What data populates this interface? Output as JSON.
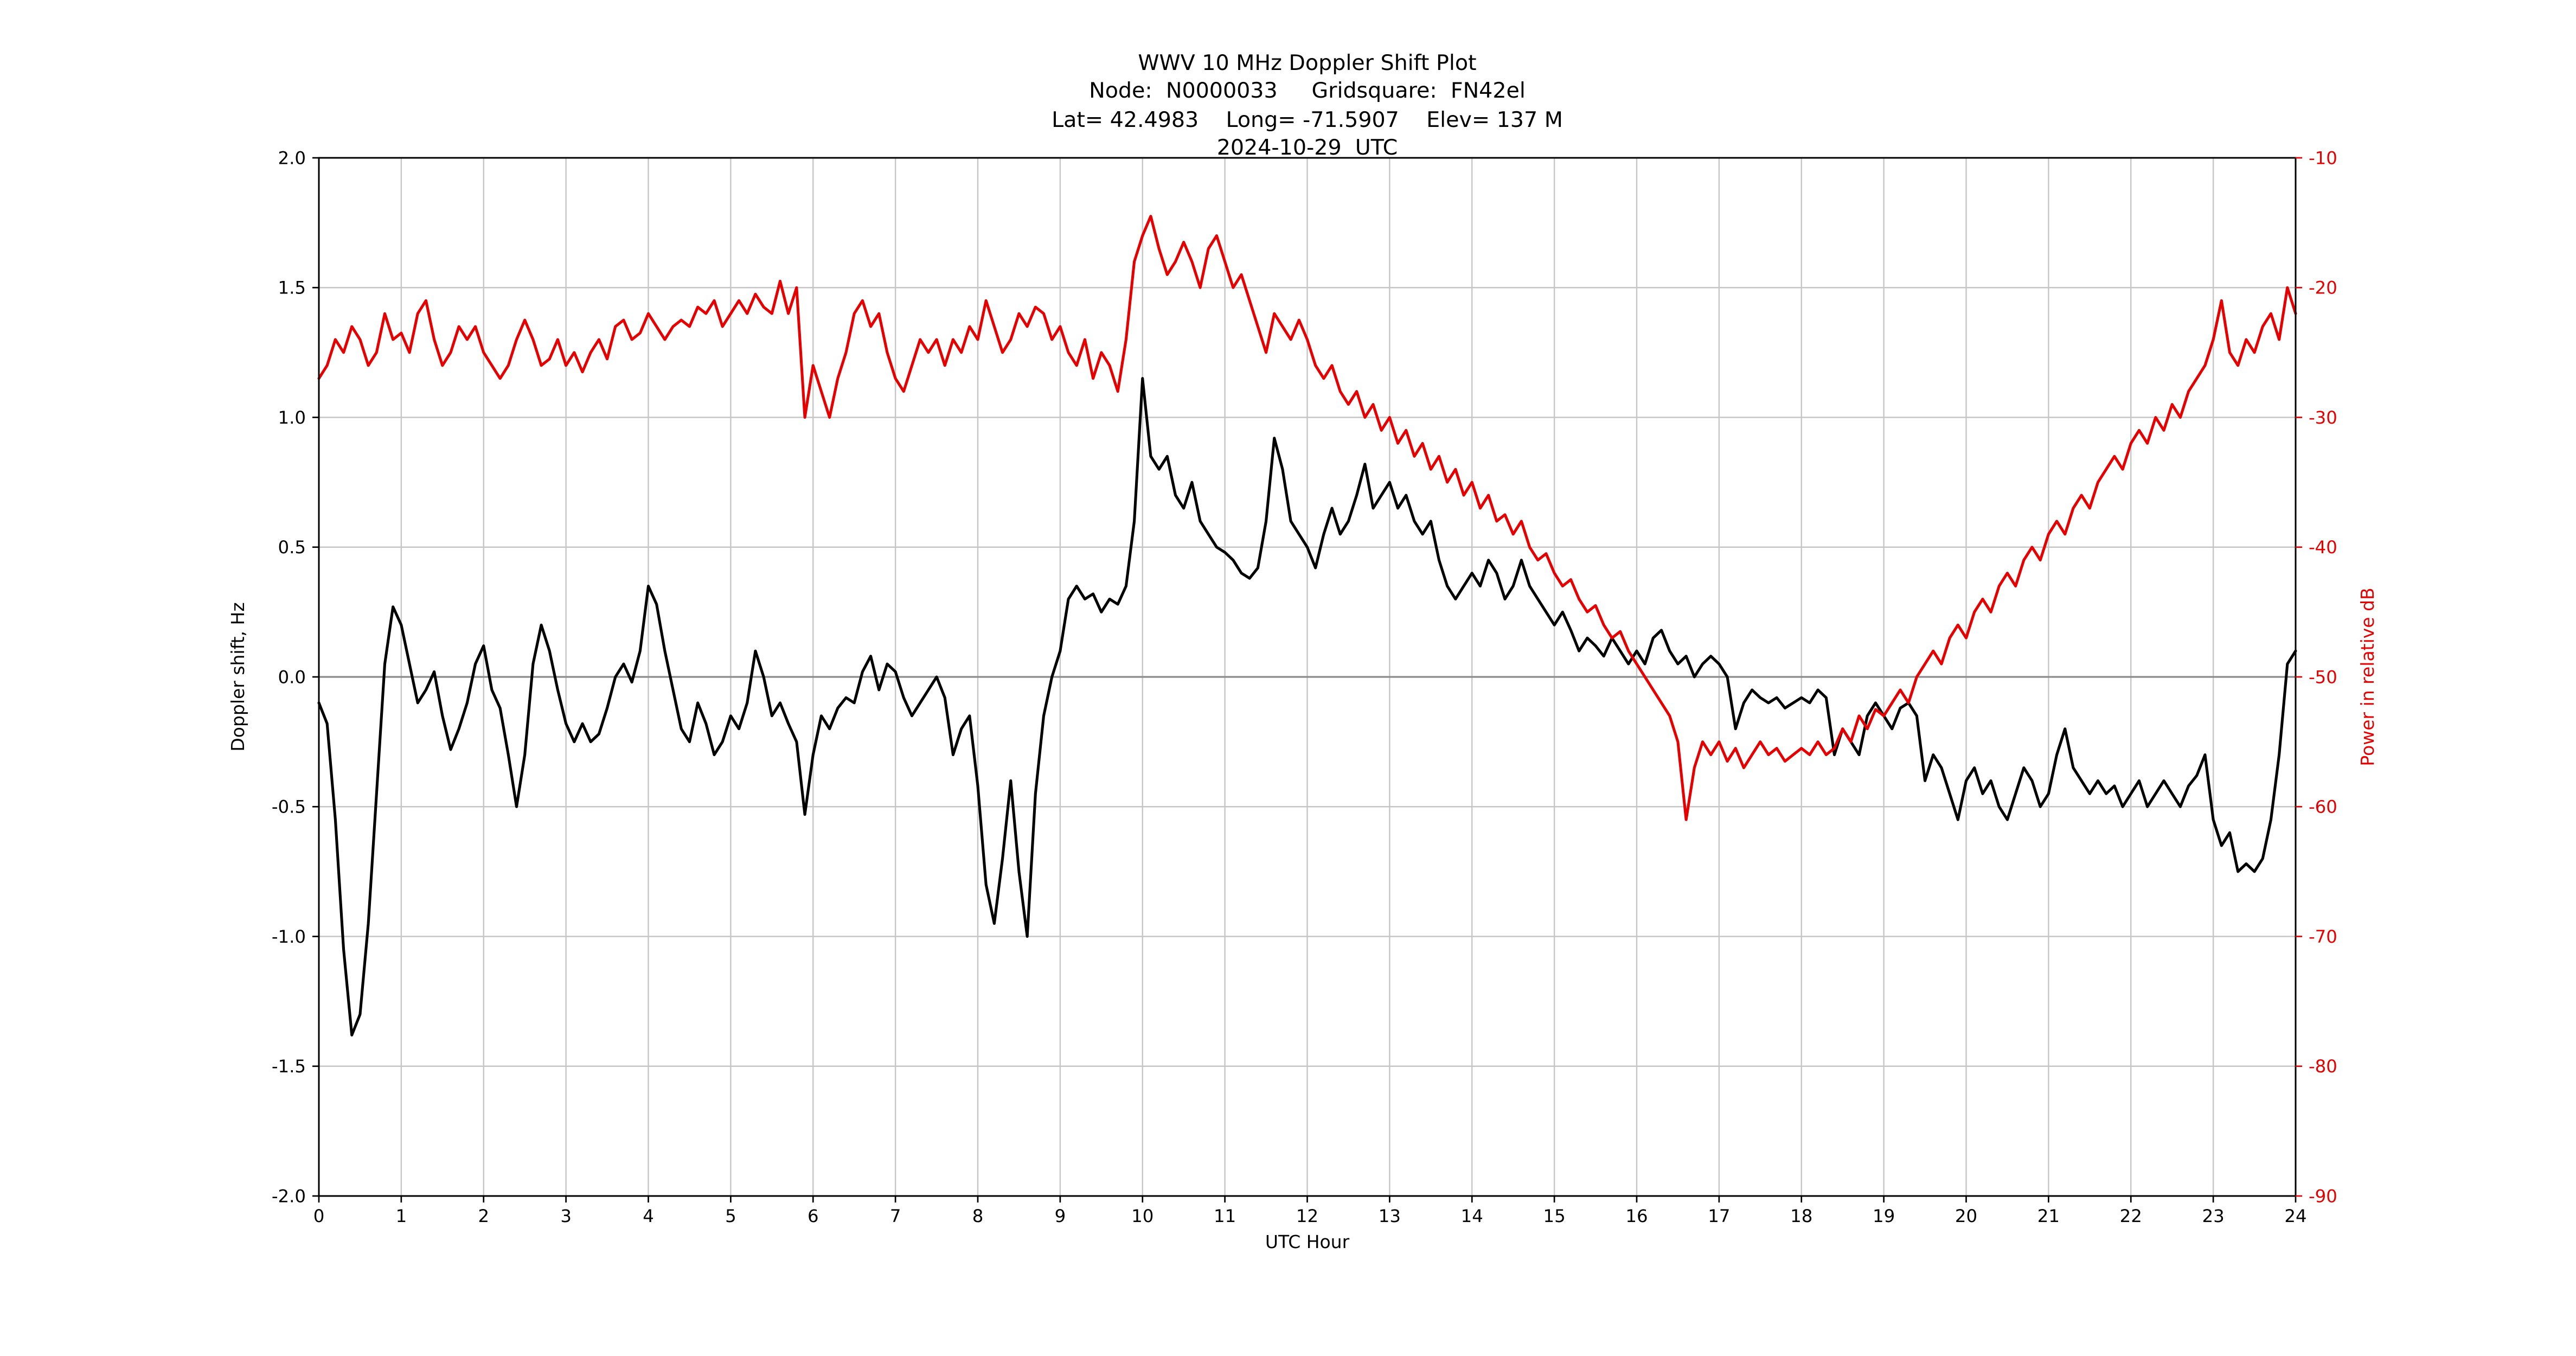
{
  "header": {
    "title": "WWV 10 MHz Doppler Shift Plot",
    "node_line": "Node:  N0000033     Gridsquare:  FN42el",
    "location_line": "Lat= 42.4983    Long= -71.5907    Elev= 137 M",
    "date_line": "2024-10-29  UTC"
  },
  "chart_data": {
    "type": "line",
    "title": "WWV 10 MHz Doppler Shift Plot",
    "xlabel": "UTC Hour",
    "ylabel_left": "Doppler shift, Hz",
    "ylabel_right": "Power in relative dB",
    "xlim": [
      0,
      24
    ],
    "ylim_left": [
      -2.0,
      2.0
    ],
    "ylim_right": [
      -90,
      -10
    ],
    "grid": true,
    "legend": "none",
    "x_start": 0,
    "x_step": 0.1,
    "xticks": {
      "values": [
        0,
        1,
        2,
        3,
        4,
        5,
        6,
        7,
        8,
        9,
        10,
        11,
        12,
        13,
        14,
        15,
        16,
        17,
        18,
        19,
        20,
        21,
        22,
        23,
        24
      ],
      "labels": [
        "0",
        "1",
        "2",
        "3",
        "4",
        "5",
        "6",
        "7",
        "8",
        "9",
        "10",
        "11",
        "12",
        "13",
        "14",
        "15",
        "16",
        "17",
        "18",
        "19",
        "20",
        "21",
        "22",
        "23",
        "24"
      ]
    },
    "yticks_left": {
      "values": [
        2.0,
        1.5,
        1.0,
        0.5,
        0.0,
        -0.5,
        -1.0,
        -1.5,
        -2.0
      ],
      "labels": [
        "2.0",
        "1.5",
        "1.0",
        "0.5",
        "0.0",
        "-0.5",
        "-1.0",
        "-1.5",
        "-2.0"
      ]
    },
    "yticks_right": {
      "values": [
        -10,
        -20,
        -30,
        -40,
        -50,
        -60,
        -70,
        -80,
        -90
      ],
      "labels": [
        "-10",
        "-20",
        "-30",
        "-40",
        "-50",
        "-60",
        "-70",
        "-80",
        "-90"
      ]
    },
    "style": {
      "grid_color": "#c6c6c6",
      "zero_line_color": "#8c8c8c",
      "spine_color": "#000000",
      "right_axis_color": "#e60000"
    },
    "series": [
      {
        "name": "Doppler shift",
        "axis": "left",
        "color": "#000000",
        "values": [
          -0.1,
          -0.18,
          -0.55,
          -1.05,
          -1.38,
          -1.3,
          -0.95,
          -0.45,
          0.05,
          0.27,
          0.2,
          0.05,
          -0.1,
          -0.05,
          0.02,
          -0.15,
          -0.28,
          -0.2,
          -0.1,
          0.05,
          0.12,
          -0.05,
          -0.12,
          -0.3,
          -0.5,
          -0.3,
          0.05,
          0.2,
          0.1,
          -0.05,
          -0.18,
          -0.25,
          -0.18,
          -0.25,
          -0.22,
          -0.12,
          0.0,
          0.05,
          -0.02,
          0.1,
          0.35,
          0.28,
          0.1,
          -0.05,
          -0.2,
          -0.25,
          -0.1,
          -0.18,
          -0.3,
          -0.25,
          -0.15,
          -0.2,
          -0.1,
          0.1,
          0.0,
          -0.15,
          -0.1,
          -0.18,
          -0.25,
          -0.53,
          -0.3,
          -0.15,
          -0.2,
          -0.12,
          -0.08,
          -0.1,
          0.02,
          0.08,
          -0.05,
          0.05,
          0.02,
          -0.08,
          -0.15,
          -0.1,
          -0.05,
          0.0,
          -0.08,
          -0.3,
          -0.2,
          -0.15,
          -0.42,
          -0.8,
          -0.95,
          -0.7,
          -0.4,
          -0.75,
          -1.0,
          -0.45,
          -0.15,
          0.0,
          0.1,
          0.3,
          0.35,
          0.3,
          0.32,
          0.25,
          0.3,
          0.28,
          0.35,
          0.6,
          1.15,
          0.85,
          0.8,
          0.85,
          0.7,
          0.65,
          0.75,
          0.6,
          0.55,
          0.5,
          0.48,
          0.45,
          0.4,
          0.38,
          0.42,
          0.6,
          0.92,
          0.8,
          0.6,
          0.55,
          0.5,
          0.42,
          0.55,
          0.65,
          0.55,
          0.6,
          0.7,
          0.82,
          0.65,
          0.7,
          0.75,
          0.65,
          0.7,
          0.6,
          0.55,
          0.6,
          0.45,
          0.35,
          0.3,
          0.35,
          0.4,
          0.35,
          0.45,
          0.4,
          0.3,
          0.35,
          0.45,
          0.35,
          0.3,
          0.25,
          0.2,
          0.25,
          0.18,
          0.1,
          0.15,
          0.12,
          0.08,
          0.15,
          0.1,
          0.05,
          0.1,
          0.05,
          0.15,
          0.18,
          0.1,
          0.05,
          0.08,
          0.0,
          0.05,
          0.08,
          0.05,
          0.0,
          -0.2,
          -0.1,
          -0.05,
          -0.08,
          -0.1,
          -0.08,
          -0.12,
          -0.1,
          -0.08,
          -0.1,
          -0.05,
          -0.08,
          -0.3,
          -0.2,
          -0.25,
          -0.3,
          -0.15,
          -0.1,
          -0.15,
          -0.2,
          -0.12,
          -0.1,
          -0.15,
          -0.4,
          -0.3,
          -0.35,
          -0.45,
          -0.55,
          -0.4,
          -0.35,
          -0.45,
          -0.4,
          -0.5,
          -0.55,
          -0.45,
          -0.35,
          -0.4,
          -0.5,
          -0.45,
          -0.3,
          -0.2,
          -0.35,
          -0.4,
          -0.45,
          -0.4,
          -0.45,
          -0.42,
          -0.5,
          -0.45,
          -0.4,
          -0.5,
          -0.45,
          -0.4,
          -0.45,
          -0.5,
          -0.42,
          -0.38,
          -0.3,
          -0.55,
          -0.65,
          -0.6,
          -0.75,
          -0.72,
          -0.75,
          -0.7,
          -0.55,
          -0.3,
          0.05,
          0.1
        ]
      },
      {
        "name": "Power in relative dB",
        "axis": "right",
        "color": "#e60000",
        "values": [
          -27,
          -26,
          -24,
          -25,
          -23,
          -24,
          -26,
          -25,
          -22,
          -24,
          -23.5,
          -25,
          -22,
          -21,
          -24,
          -26,
          -25,
          -23,
          -24,
          -23,
          -25,
          -26,
          -27,
          -26,
          -24,
          -22.5,
          -24,
          -26,
          -25.5,
          -24,
          -26,
          -25,
          -26.5,
          -25,
          -24,
          -25.5,
          -23,
          -22.5,
          -24,
          -23.5,
          -22,
          -23,
          -24,
          -23,
          -22.5,
          -23,
          -21.5,
          -22,
          -21,
          -23,
          -22,
          -21,
          -22,
          -20.5,
          -21.5,
          -22,
          -19.5,
          -22,
          -20,
          -30,
          -26,
          -28,
          -30,
          -27,
          -25,
          -22,
          -21,
          -23,
          -22,
          -25,
          -27,
          -28,
          -26,
          -24,
          -25,
          -24,
          -26,
          -24,
          -25,
          -23,
          -24,
          -21,
          -23,
          -25,
          -24,
          -22,
          -23,
          -21.5,
          -22,
          -24,
          -23,
          -25,
          -26,
          -24,
          -27,
          -25,
          -26,
          -28,
          -24,
          -18,
          -16,
          -14.5,
          -17,
          -19,
          -18,
          -16.5,
          -18,
          -20,
          -17,
          -16,
          -18,
          -20,
          -19,
          -21,
          -23,
          -25,
          -22,
          -23,
          -24,
          -22.5,
          -24,
          -26,
          -27,
          -26,
          -28,
          -29,
          -28,
          -30,
          -29,
          -31,
          -30,
          -32,
          -31,
          -33,
          -32,
          -34,
          -33,
          -35,
          -34,
          -36,
          -35,
          -37,
          -36,
          -38,
          -37.5,
          -39,
          -38,
          -40,
          -41,
          -40.5,
          -42,
          -43,
          -42.5,
          -44,
          -45,
          -44.5,
          -46,
          -47,
          -46.5,
          -48,
          -49,
          -50,
          -51,
          -52,
          -53,
          -55,
          -61,
          -57,
          -55,
          -56,
          -55,
          -56.5,
          -55.5,
          -57,
          -56,
          -55,
          -56,
          -55.5,
          -56.5,
          -56,
          -55.5,
          -56,
          -55,
          -56,
          -55.5,
          -54,
          -55,
          -53,
          -54,
          -52.5,
          -53,
          -52,
          -51,
          -52,
          -50,
          -49,
          -48,
          -49,
          -47,
          -46,
          -47,
          -45,
          -44,
          -45,
          -43,
          -42,
          -43,
          -41,
          -40,
          -41,
          -39,
          -38,
          -39,
          -37,
          -36,
          -37,
          -35,
          -34,
          -33,
          -34,
          -32,
          -31,
          -32,
          -30,
          -31,
          -29,
          -30,
          -28,
          -27,
          -26,
          -24,
          -21,
          -25,
          -26,
          -24,
          -25,
          -23,
          -22,
          -24,
          -20,
          -22
        ]
      }
    ]
  }
}
